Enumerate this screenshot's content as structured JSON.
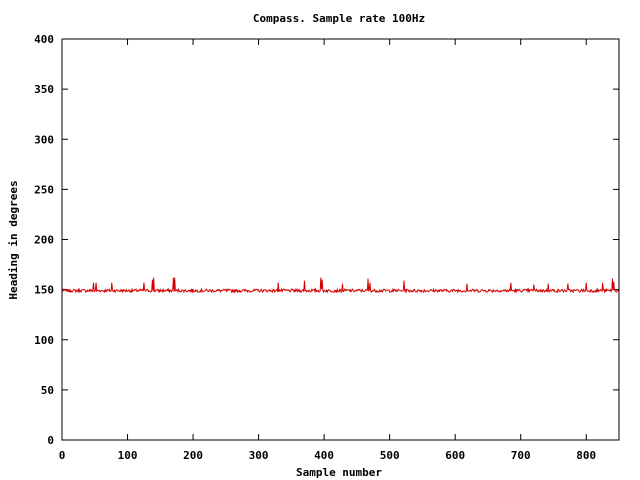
{
  "chart_data": {
    "type": "line",
    "title": "Compass. Sample rate 100Hz",
    "xlabel": "Sample number",
    "ylabel": "Heading in degrees",
    "xlim": [
      0,
      850
    ],
    "ylim": [
      0,
      400
    ],
    "xticks": [
      0,
      100,
      200,
      300,
      400,
      500,
      600,
      700,
      800
    ],
    "yticks": [
      0,
      50,
      100,
      150,
      200,
      250,
      300,
      350,
      400
    ],
    "grid": false,
    "legend": "none",
    "color": "#d40000",
    "series": [
      {
        "baseline": 149,
        "noise": 1.5,
        "n_samples": 851,
        "x": [
          0,
          48,
          50,
          52,
          76,
          125,
          138,
          140,
          170,
          172,
          330,
          370,
          395,
          397,
          428,
          467,
          470,
          522,
          618,
          685,
          720,
          742,
          772,
          800,
          825,
          840,
          842
        ],
        "y": [
          151,
          157,
          148,
          157,
          157,
          157,
          160,
          162,
          162,
          162,
          157,
          159,
          162,
          160,
          156,
          161,
          157,
          159,
          156,
          157,
          155,
          156,
          156,
          157,
          157,
          161,
          158
        ]
      }
    ]
  }
}
